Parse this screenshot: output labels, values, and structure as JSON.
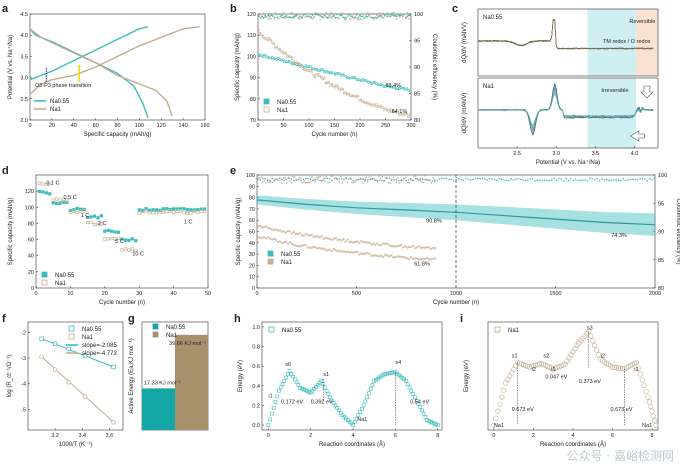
{
  "colors": {
    "na055": "#3cbdbd",
    "na1": "#c4ad8f",
    "highlightCyan": "#cfeff2",
    "highlightPink": "#fbe1d2",
    "yellow": "#e8e020"
  },
  "watermark": "公众号 · 嘉峪检测网",
  "chart_data": [
    {
      "panel": "a",
      "type": "line",
      "xlabel": "Specific capacity (mAh/g)",
      "ylabel": "Potential (V vs. Na⁺/Na)",
      "xticks": [
        "0",
        "20",
        "40",
        "60",
        "80",
        "100",
        "120",
        "140",
        "160"
      ],
      "xlim": [
        0,
        160
      ],
      "yticks": [
        "2.0",
        "2.5",
        "3.0",
        "3.5",
        "4.0",
        "4.5"
      ],
      "ylim": [
        2.0,
        4.5
      ],
      "legend": [
        "Na0.55",
        "Na1"
      ],
      "annotation": "O3-P3 phase transition",
      "series": [
        {
          "name": "Na0.55 charge",
          "x": [
            0,
            10,
            20,
            40,
            60,
            80,
            100,
            108
          ],
          "y": [
            2.95,
            3.05,
            3.15,
            3.4,
            3.65,
            3.9,
            4.15,
            4.2
          ]
        },
        {
          "name": "Na0.55 discharge",
          "x": [
            0,
            5,
            20,
            40,
            60,
            80,
            95,
            103,
            108
          ],
          "y": [
            4.15,
            4.0,
            3.85,
            3.6,
            3.35,
            3.1,
            2.8,
            2.4,
            2.05
          ]
        },
        {
          "name": "Na1 charge",
          "x": [
            0,
            10,
            20,
            40,
            60,
            80,
            100,
            120,
            140,
            155
          ],
          "y": [
            2.6,
            2.85,
            2.95,
            3.05,
            3.25,
            3.5,
            3.75,
            3.95,
            4.15,
            4.2
          ]
        },
        {
          "name": "Na1 discharge",
          "x": [
            0,
            10,
            30,
            60,
            80,
            100,
            115,
            125,
            130
          ],
          "y": [
            4.15,
            3.95,
            3.7,
            3.35,
            3.05,
            2.85,
            2.7,
            2.45,
            2.1
          ]
        }
      ]
    },
    {
      "panel": "b",
      "type": "scatter",
      "xlabel": "Cycle number (n)",
      "ylabel": "Specific capacity (mAh/g)",
      "y2label": "Coulombic efficiency (%)",
      "xticks": [
        "0",
        "50",
        "100",
        "150",
        "200",
        "250",
        "300"
      ],
      "xlim": [
        0,
        300
      ],
      "yticks": [
        "70",
        "80",
        "90",
        "100",
        "110",
        "120"
      ],
      "ylim": [
        70,
        120
      ],
      "y2ticks": [
        "80",
        "85",
        "90",
        "95",
        "100"
      ],
      "y2lim": [
        80,
        100
      ],
      "legend": [
        "Na0.55",
        "Na1"
      ],
      "retention": [
        "83.4%",
        "64.1%"
      ],
      "series": [
        {
          "name": "Na0.55",
          "x": [
            0,
            50,
            100,
            150,
            200,
            250,
            300
          ],
          "y": [
            101,
            98,
            95,
            92,
            89,
            86,
            84
          ]
        },
        {
          "name": "Na1",
          "x": [
            0,
            50,
            100,
            150,
            200,
            250,
            300
          ],
          "y": [
            112,
            102,
            93,
            86,
            80,
            75,
            72
          ]
        }
      ]
    },
    {
      "panel": "c",
      "type": "line",
      "xlabel": "Potential (V vs. Na⁺/Na)",
      "ylabel": "dQ/dV (mAh/V)",
      "xticks": [
        "2.5",
        "3.0",
        "3.5",
        "4.0"
      ],
      "xlim": [
        2.0,
        4.3
      ],
      "subplots": [
        "Na0.55",
        "Na1"
      ],
      "labels": [
        "Reversible",
        "TM redox / O redox",
        "Irreversible"
      ]
    },
    {
      "panel": "d",
      "type": "scatter",
      "xlabel": "Cycle number (n)",
      "ylabel": "Specific capacity (mAh/g)",
      "xticks": [
        "0",
        "10",
        "20",
        "30",
        "40",
        "50"
      ],
      "xlim": [
        0,
        50
      ],
      "yticks": [
        "0",
        "20",
        "40",
        "60",
        "80",
        "100",
        "120"
      ],
      "ylim": [
        0,
        140
      ],
      "legend": [
        "Na0.55",
        "Na1"
      ],
      "rates": [
        "0.1 C",
        "0.5 C",
        "1 C",
        "2 C",
        "5 C",
        "10 C",
        "1 C"
      ],
      "series": [
        {
          "name": "Na0.55",
          "x": [
            2.5,
            7.5,
            12.5,
            17.5,
            22.5,
            27.5,
            40
          ],
          "y": [
            118,
            105,
            97,
            88,
            70,
            60,
            97
          ]
        },
        {
          "name": "Na1",
          "x": [
            2.5,
            7.5,
            12.5,
            17.5,
            22.5,
            27.5,
            40
          ],
          "y": [
            128,
            110,
            95,
            80,
            62,
            48,
            94
          ]
        }
      ]
    },
    {
      "panel": "e",
      "type": "scatter",
      "xlabel": "Cycle number (n)",
      "ylabel": "Specific capacity (mAh/g)",
      "y2label": "Coulombic efficiency (%)",
      "xticks": [
        "0",
        "500",
        "1000",
        "1500",
        "2000"
      ],
      "xlim": [
        0,
        2000
      ],
      "yticks": [
        "0",
        "10",
        "20",
        "30",
        "40",
        "50",
        "60",
        "70",
        "80",
        "90",
        "100"
      ],
      "ylim": [
        0,
        100
      ],
      "y2ticks": [
        "80",
        "85",
        "90",
        "95",
        "100"
      ],
      "y2lim": [
        80,
        100
      ],
      "legend": [
        "Na0.55",
        "Na1"
      ],
      "retention": [
        "90.8%",
        "74.3%",
        "61.8%"
      ],
      "series": [
        {
          "name": "Na0.55",
          "x": [
            0,
            250,
            500,
            750,
            1000,
            1250,
            1500,
            1750,
            2000
          ],
          "y": [
            78,
            74,
            71,
            69,
            67,
            64,
            61,
            58,
            56
          ]
        },
        {
          "name": "Na1 (upper)",
          "x": [
            0,
            200,
            400,
            600,
            800,
            900
          ],
          "y": [
            55,
            48,
            43,
            39,
            36,
            35
          ]
        },
        {
          "name": "Na1 (lower)",
          "x": [
            0,
            200,
            400,
            600,
            800,
            900
          ],
          "y": [
            46,
            38,
            33,
            29,
            26,
            25
          ]
        }
      ]
    },
    {
      "panel": "f",
      "type": "scatter",
      "xlabel": "1000/T (K⁻¹)",
      "ylabel": "log (R_ct⁻¹/Ω⁻¹)",
      "xticks": [
        "3.2",
        "3.4",
        "3.6"
      ],
      "xlim": [
        3.0,
        3.7
      ],
      "yticks": [
        "-2",
        "-3",
        "-4",
        "-5"
      ],
      "ylim": [
        -5.8,
        -1.6
      ],
      "legend": [
        "Na0.55",
        "Na1",
        "slope=-2.085",
        "slope=-4.773"
      ],
      "series": [
        {
          "name": "Na0.55",
          "x": [
            3.1,
            3.2,
            3.3,
            3.42,
            3.63
          ],
          "y": [
            -2.25,
            -2.45,
            -2.65,
            -2.9,
            -3.35
          ]
        },
        {
          "name": "Na1",
          "x": [
            3.1,
            3.2,
            3.3,
            3.42,
            3.63
          ],
          "y": [
            -2.95,
            -3.45,
            -3.95,
            -4.5,
            -5.5
          ]
        }
      ]
    },
    {
      "panel": "g",
      "type": "bar",
      "ylabel": "Active Energy (Ea,KJ mol⁻¹)",
      "categories": [
        "Na0.55",
        "Na1"
      ],
      "values": [
        17.33,
        39.66
      ],
      "labels": [
        "17.33 KJ mol⁻¹",
        "39.66 KJ mol⁻¹"
      ],
      "ylim": [
        0,
        45
      ]
    },
    {
      "panel": "h",
      "type": "line",
      "xlabel": "Reaction coordinates (Å)",
      "ylabel": "Energy (eV)",
      "xticks": [
        "0",
        "2",
        "4",
        "6",
        "8"
      ],
      "xlim": [
        -0.3,
        8.2
      ],
      "yticks": [
        "0.0",
        "0.2",
        "0.4",
        "0.6",
        "0.8",
        "1.0"
      ],
      "ylim": [
        -0.05,
        1.05
      ],
      "legend": [
        "Na0.55"
      ],
      "annotations": [
        "s6",
        "s1",
        "s4",
        "i1",
        "Na1",
        "0.172 eV",
        "0.392 eV",
        "0.54 eV"
      ],
      "series": [
        {
          "name": "Na0.55",
          "x": [
            0,
            0.5,
            1,
            1.5,
            2,
            2.5,
            3,
            3.5,
            4,
            4.5,
            5,
            5.5,
            6,
            6.5,
            7,
            7.5,
            8
          ],
          "y": [
            0.0,
            0.35,
            0.55,
            0.38,
            0.33,
            0.45,
            0.25,
            0.1,
            0.0,
            0.2,
            0.45,
            0.52,
            0.54,
            0.45,
            0.25,
            0.05,
            0.0
          ]
        }
      ]
    },
    {
      "panel": "i",
      "type": "line",
      "xlabel": "Reaction coordinates (Å)",
      "ylabel": "Energy (eV)",
      "xticks": [
        "0",
        "2",
        "4",
        "6",
        "8"
      ],
      "xlim": [
        -0.3,
        8.3
      ],
      "yticks": [
        "0.0",
        "0.2",
        "0.4",
        "0.6",
        "0.8",
        "1.0"
      ],
      "ylim": [
        -0.05,
        1.1
      ],
      "legend": [
        "Na1"
      ],
      "annotations": [
        "s1",
        "s2",
        "s3",
        "i2",
        "i1",
        "i2",
        "i1",
        "Na1",
        "Na1",
        "0.673 eV",
        "0.047 eV",
        "0.373 eV",
        "0.673 eV"
      ],
      "series": [
        {
          "name": "Na1",
          "x": [
            0,
            0.6,
            1.2,
            1.8,
            2.4,
            3.0,
            3.6,
            4.2,
            4.8,
            5.4,
            6.0,
            6.6,
            7.2,
            7.8,
            8.2
          ],
          "y": [
            0.0,
            0.45,
            0.67,
            0.62,
            0.66,
            0.6,
            0.65,
            0.85,
            1.0,
            0.7,
            0.62,
            0.6,
            0.67,
            0.3,
            0.0
          ]
        }
      ]
    }
  ]
}
